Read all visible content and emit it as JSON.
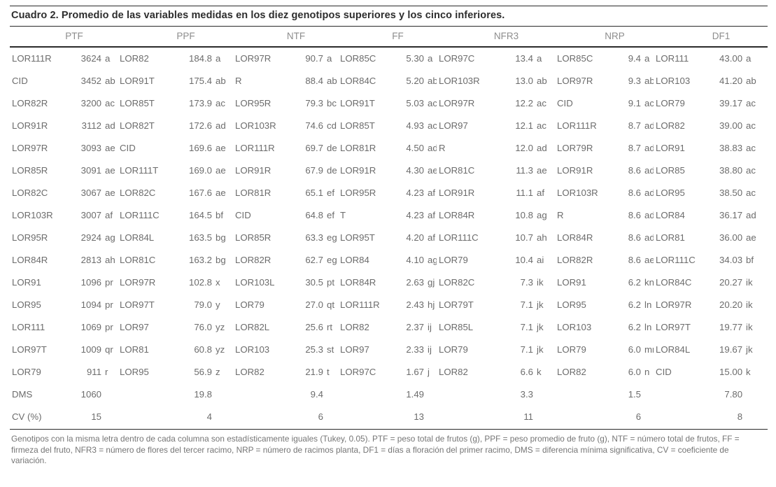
{
  "title": "Cuadro 2. Promedio de las variables medidas en los diez genotipos superiores y los cinco inferiores.",
  "table": {
    "columns": [
      "PTF",
      "PPF",
      "NTF",
      "FF",
      "NFR3",
      "NRP",
      "DF1"
    ],
    "rows": [
      [
        [
          "LOR111R",
          "3624",
          "a"
        ],
        [
          "LOR82",
          "184.8",
          "a"
        ],
        [
          "LOR97R",
          "90.7",
          "a"
        ],
        [
          "LOR85C",
          "5.30",
          "a"
        ],
        [
          "LOR97C",
          "13.4",
          "a"
        ],
        [
          "LOR85C",
          "9.4",
          "a"
        ],
        [
          "LOR111",
          "43.00",
          "a"
        ]
      ],
      [
        [
          "CID",
          "3452",
          "ab"
        ],
        [
          "LOR91T",
          "175.4",
          "ab"
        ],
        [
          "R",
          "88.4",
          "ab"
        ],
        [
          "LOR84C",
          "5.20",
          "ab"
        ],
        [
          "LOR103R",
          "13.0",
          "ab"
        ],
        [
          "LOR97R",
          "9.3",
          "ab"
        ],
        [
          "LOR103",
          "41.20",
          "ab"
        ]
      ],
      [
        [
          "LOR82R",
          "3200",
          "ac"
        ],
        [
          "LOR85T",
          "173.9",
          "ac"
        ],
        [
          "LOR95R",
          "79.3",
          "bc"
        ],
        [
          "LOR91T",
          "5.03",
          "ac"
        ],
        [
          "LOR97R",
          "12.2",
          "ac"
        ],
        [
          "CID",
          "9.1",
          "ac"
        ],
        [
          "LOR79",
          "39.17",
          "ac"
        ]
      ],
      [
        [
          "LOR91R",
          "3112",
          "ad"
        ],
        [
          "LOR82T",
          "172.6",
          "ad"
        ],
        [
          "LOR103R",
          "74.6",
          "cd"
        ],
        [
          "LOR85T",
          "4.93",
          "ac"
        ],
        [
          "LOR97",
          "12.1",
          "ac"
        ],
        [
          "LOR111R",
          "8.7",
          "ad"
        ],
        [
          "LOR82",
          "39.00",
          "ac"
        ]
      ],
      [
        [
          "LOR97R",
          "3093",
          "ae"
        ],
        [
          "CID",
          "169.6",
          "ae"
        ],
        [
          "LOR111R",
          "69.7",
          "de"
        ],
        [
          "LOR81R",
          "4.50",
          "ad"
        ],
        [
          "R",
          "12.0",
          "ad"
        ],
        [
          "LOR79R",
          "8.7",
          "ad"
        ],
        [
          "LOR91",
          "38.83",
          "ac"
        ]
      ],
      [
        [
          "LOR85R",
          "3091",
          "ae"
        ],
        [
          "LOR111T",
          "169.0",
          "ae"
        ],
        [
          "LOR91R",
          "67.9",
          "de"
        ],
        [
          "LOR91R",
          "4.30",
          "ae"
        ],
        [
          "LOR81C",
          "11.3",
          "ae"
        ],
        [
          "LOR91R",
          "8.6",
          "ad"
        ],
        [
          "LOR85",
          "38.80",
          "ac"
        ]
      ],
      [
        [
          "LOR82C",
          "3067",
          "ae"
        ],
        [
          "LOR82C",
          "167.6",
          "ae"
        ],
        [
          "LOR81R",
          "65.1",
          "ef"
        ],
        [
          "LOR95R",
          "4.23",
          "af"
        ],
        [
          "LOR91R",
          "11.1",
          "af"
        ],
        [
          "LOR103R",
          "8.6",
          "ad"
        ],
        [
          "LOR95",
          "38.50",
          "ac"
        ]
      ],
      [
        [
          "LOR103R",
          "3007",
          "af"
        ],
        [
          "LOR111C",
          "164.5",
          "bf"
        ],
        [
          "CID",
          "64.8",
          "ef"
        ],
        [
          "T",
          "4.23",
          "af"
        ],
        [
          "LOR84R",
          "10.8",
          "ag"
        ],
        [
          "R",
          "8.6",
          "ad"
        ],
        [
          "LOR84",
          "36.17",
          "ad"
        ]
      ],
      [
        [
          "LOR95R",
          "2924",
          "ag"
        ],
        [
          "LOR84L",
          "163.5",
          "bg"
        ],
        [
          "LOR85R",
          "63.3",
          "eg"
        ],
        [
          "LOR95T",
          "4.20",
          "af"
        ],
        [
          "LOR111C",
          "10.7",
          "ah"
        ],
        [
          "LOR84R",
          "8.6",
          "ad"
        ],
        [
          "LOR81",
          "36.00",
          "ae"
        ]
      ],
      [
        [
          "LOR84R",
          "2813",
          "ah"
        ],
        [
          "LOR81C",
          "163.2",
          "bg"
        ],
        [
          "LOR82R",
          "62.7",
          "eg"
        ],
        [
          "LOR84",
          "4.10",
          "ag"
        ],
        [
          "LOR79",
          "10.4",
          "ai"
        ],
        [
          "LOR82R",
          "8.6",
          "ae"
        ],
        [
          "LOR111C",
          "34.03",
          "bf"
        ]
      ],
      [
        [
          "LOR91",
          "1096",
          "pr"
        ],
        [
          "LOR97R",
          "102.8",
          "x"
        ],
        [
          "LOR103L",
          "30.5",
          "pt"
        ],
        [
          "LOR84R",
          "2.63",
          "gj"
        ],
        [
          "LOR82C",
          "7.3",
          "ik"
        ],
        [
          "LOR91",
          "6.2",
          "kn"
        ],
        [
          "LOR84C",
          "20.27",
          "ik"
        ]
      ],
      [
        [
          "LOR95",
          "1094",
          "pr"
        ],
        [
          "LOR97T",
          "79.0",
          "y"
        ],
        [
          "LOR79",
          "27.0",
          "qt"
        ],
        [
          "LOR111R",
          "2.43",
          "hj"
        ],
        [
          "LOR79T",
          "7.1",
          "jk"
        ],
        [
          "LOR95",
          "6.2",
          "ln"
        ],
        [
          "LOR97R",
          "20.20",
          "ik"
        ]
      ],
      [
        [
          "LOR111",
          "1069",
          "pr"
        ],
        [
          "LOR97",
          "76.0",
          "yz"
        ],
        [
          "LOR82L",
          "25.6",
          "rt"
        ],
        [
          "LOR82",
          "2.37",
          "ij"
        ],
        [
          "LOR85L",
          "7.1",
          "jk"
        ],
        [
          "LOR103",
          "6.2",
          "ln"
        ],
        [
          "LOR97T",
          "19.77",
          "ik"
        ]
      ],
      [
        [
          "LOR97T",
          "1009",
          "qr"
        ],
        [
          "LOR81",
          "60.8",
          "yz"
        ],
        [
          "LOR103",
          "25.3",
          "st"
        ],
        [
          "LOR97",
          "2.33",
          "ij"
        ],
        [
          "LOR79",
          "7.1",
          "jk"
        ],
        [
          "LOR79",
          "6.0",
          "mn"
        ],
        [
          "LOR84L",
          "19.67",
          "jk"
        ]
      ],
      [
        [
          "LOR79",
          "911",
          "r"
        ],
        [
          "LOR95",
          "56.9",
          "z"
        ],
        [
          "LOR82",
          "21.9",
          "t"
        ],
        [
          "LOR97C",
          "1.67",
          "j"
        ],
        [
          "LOR82",
          "6.6",
          "k"
        ],
        [
          "LOR82",
          "6.0",
          "n"
        ],
        [
          "CID",
          "15.00",
          "k"
        ]
      ]
    ],
    "dms_label": "DMS",
    "dms_values": [
      "1060",
      "19.8",
      "9.4",
      "1.49",
      "3.3",
      "1.5",
      "7.80"
    ],
    "cv_label": "CV (%)",
    "cv_values": [
      "15",
      "4",
      "6",
      "13",
      "11",
      "6",
      "8"
    ]
  },
  "footnote": "Genotipos con la misma letra dentro de cada columna son estadísticamente iguales (Tukey, 0.05). PTF = peso total de frutos (g), PPF = peso promedio de fruto (g), NTF = número total de frutos, FF = firmeza del fruto, NFR3 = número de flores del tercer racimo, NRP = número de racimos planta, DF1 = días a floración del primer racimo, DMS = diferencia mínima significativa, CV = coeficiente de variación."
}
